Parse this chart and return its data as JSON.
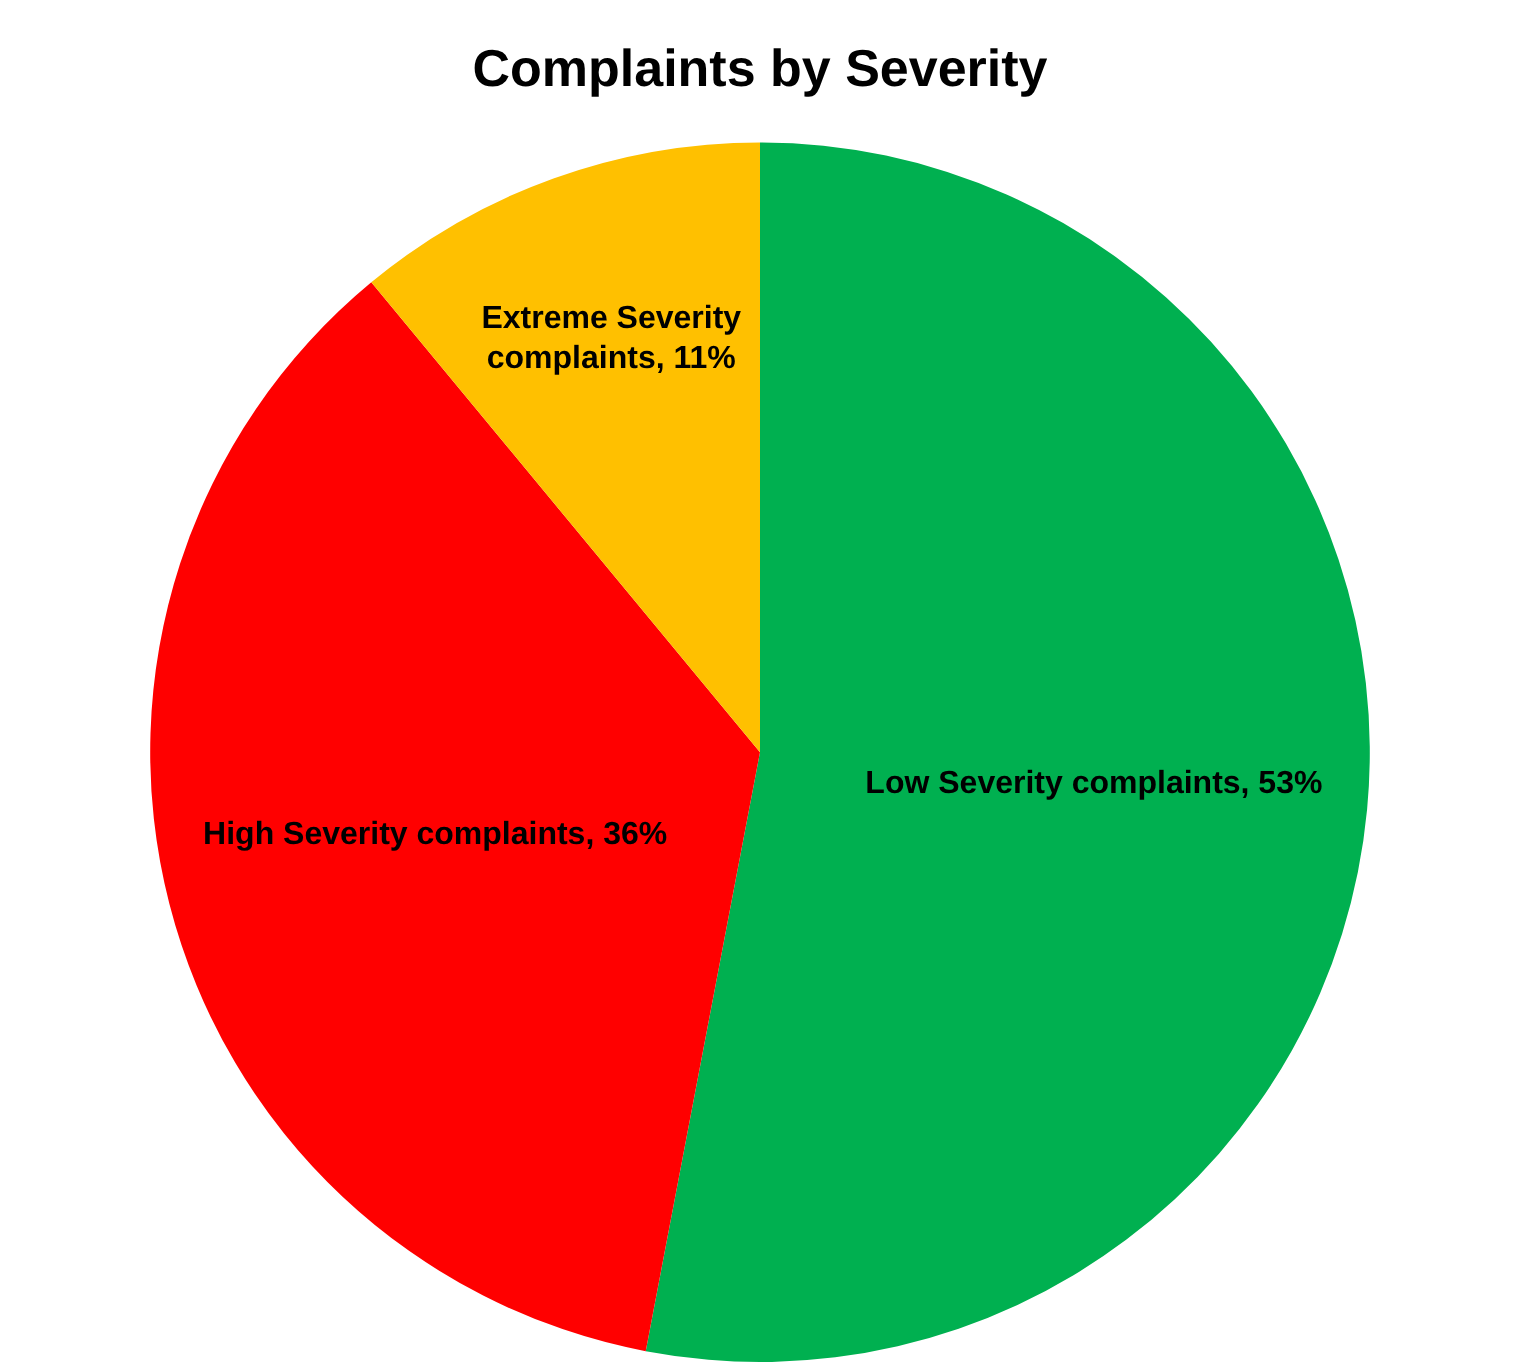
{
  "chart_data": {
    "type": "pie",
    "title": "Complaints by Severity",
    "categories": [
      "Low Severity complaints",
      "High Severity complaints",
      "Extreme Severity complaints"
    ],
    "values": [
      53,
      36,
      11
    ],
    "colors": [
      "#00b050",
      "#ff0000",
      "#ffc000"
    ],
    "value_labels": [
      "53%",
      "36%",
      "11%"
    ],
    "legend": false
  }
}
